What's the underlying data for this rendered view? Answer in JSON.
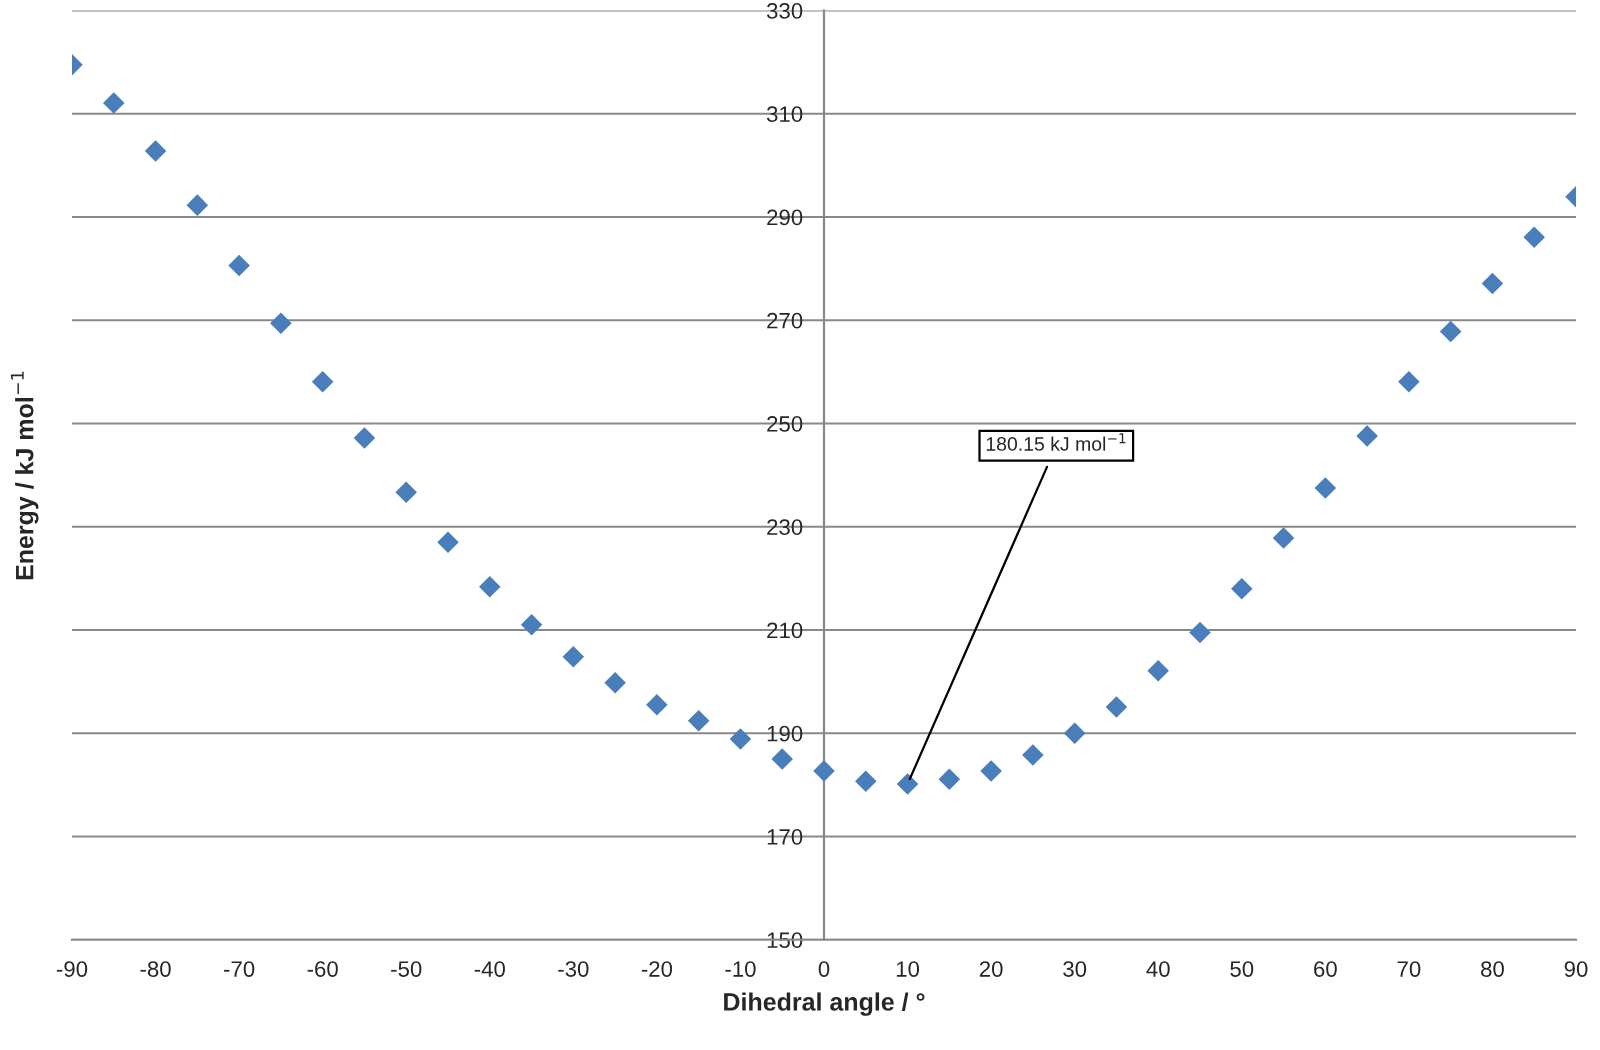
{
  "chart_data": {
    "type": "scatter",
    "xlabel": "Dihedral angle / °",
    "ylabel": "Energy / kJ mol$^{−1}$",
    "x": [
      -90,
      -85,
      -80,
      -75,
      -70,
      -65,
      -60,
      -55,
      -50,
      -45,
      -40,
      -35,
      -30,
      -25,
      -20,
      -15,
      -10,
      -5,
      0,
      5,
      10,
      15,
      20,
      25,
      30,
      35,
      40,
      45,
      50,
      55,
      60,
      65,
      70,
      75,
      80,
      85,
      90
    ],
    "series": [
      {
        "color": "#4a7ebb",
        "values": [
          319.5,
          312.1,
          302.8,
          292.3,
          280.6,
          269.4,
          258.1,
          247.2,
          236.7,
          227,
          218.4,
          211,
          204.8,
          199.8,
          195.5,
          192.4,
          188.9,
          185,
          182.7,
          180.7,
          180.15,
          181.1,
          182.7,
          185.8,
          190,
          195.1,
          202.1,
          209.5,
          218,
          227.8,
          237.5,
          247.6,
          258.1,
          267.8,
          277.1,
          286.1,
          293.9
        ]
      }
    ],
    "xlim": [
      -90,
      90
    ],
    "xticks": [
      -90,
      -80,
      -70,
      -60,
      -50,
      -40,
      -30,
      -20,
      -10,
      0,
      10,
      20,
      30,
      40,
      50,
      60,
      70,
      80,
      90
    ],
    "ylim": [
      150,
      330
    ],
    "yticks": [
      150,
      170,
      190,
      210,
      230,
      250,
      270,
      290,
      310,
      330
    ],
    "grid": "y",
    "marker": "diamond",
    "annotations": [
      {
        "text": "180.15 kJ mol$^{−1}$",
        "x": 10,
        "y": 180.15
      }
    ]
  }
}
